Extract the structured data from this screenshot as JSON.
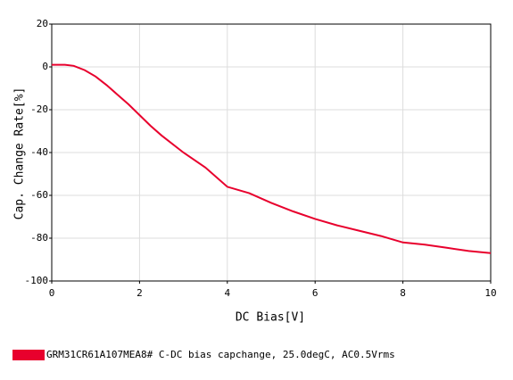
{
  "chart_data": {
    "type": "line",
    "xlabel": "DC Bias[V]",
    "ylabel": "Cap. Change Rate[%]",
    "x": [
      0,
      0.3,
      0.5,
      0.75,
      1,
      1.25,
      1.5,
      1.75,
      2,
      2.25,
      2.5,
      3,
      3.5,
      4,
      4.5,
      5,
      5.5,
      6,
      6.5,
      7,
      7.5,
      8,
      8.5,
      9,
      9.5,
      10
    ],
    "series": [
      {
        "name": "GRM31CR61A107MEA8# C-DC bias capchange, 25.0degC, AC0.5Vrms",
        "color": "#e8002d",
        "values": [
          1,
          1,
          0.5,
          -1.5,
          -4.5,
          -8.5,
          -13,
          -17.5,
          -22.5,
          -27.5,
          -32,
          -40,
          -47,
          -56,
          -59,
          -63.5,
          -67.5,
          -71,
          -74,
          -76.5,
          -79,
          -82,
          -83,
          -84.5,
          -86,
          -87
        ]
      }
    ],
    "xlim": [
      0,
      10
    ],
    "xticks": [
      0,
      2,
      4,
      6,
      8,
      10
    ],
    "ylim": [
      -100,
      20
    ],
    "yticks": [
      -100,
      -80,
      -60,
      -40,
      -20,
      0,
      20
    ],
    "grid": true
  }
}
